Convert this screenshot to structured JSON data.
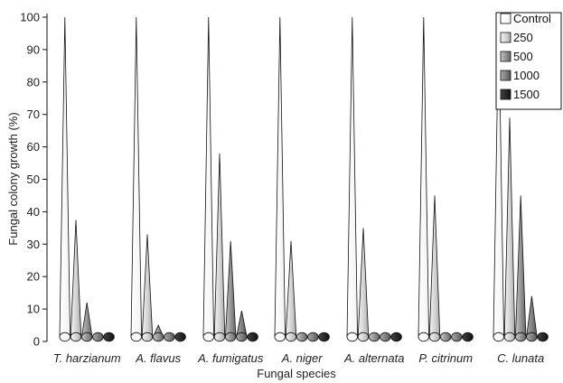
{
  "chart_data": {
    "type": "bar",
    "title": "",
    "xlabel": "Fungal species",
    "ylabel": "Fungal colony growth (%)",
    "ylim": [
      0,
      100
    ],
    "yticks": [
      0,
      10,
      20,
      30,
      40,
      50,
      60,
      70,
      80,
      90,
      100
    ],
    "grid": false,
    "legend_position": "top-right",
    "categories": [
      "T. harzianum",
      "A. flavus",
      "A. fumigatus",
      "A. niger",
      "A. alternata",
      "P. citrinum",
      "C. lunata"
    ],
    "series": [
      {
        "name": "Control",
        "color": "#ffffff",
        "values": [
          100,
          100,
          100,
          100,
          100,
          100,
          100
        ]
      },
      {
        "name": "250",
        "color": "#d0d0d0",
        "values": [
          37.5,
          33,
          58,
          31,
          35,
          45,
          69
        ]
      },
      {
        "name": "500",
        "color": "#9a9a9a",
        "values": [
          12,
          5,
          31,
          0,
          0,
          0,
          45
        ]
      },
      {
        "name": "1000",
        "color": "#7a7a7a",
        "values": [
          0,
          0,
          9.5,
          0,
          0,
          0,
          14
        ]
      },
      {
        "name": "1500",
        "color": "#1a1a1a",
        "values": [
          0,
          0,
          0,
          0,
          0,
          0,
          0
        ]
      }
    ]
  }
}
